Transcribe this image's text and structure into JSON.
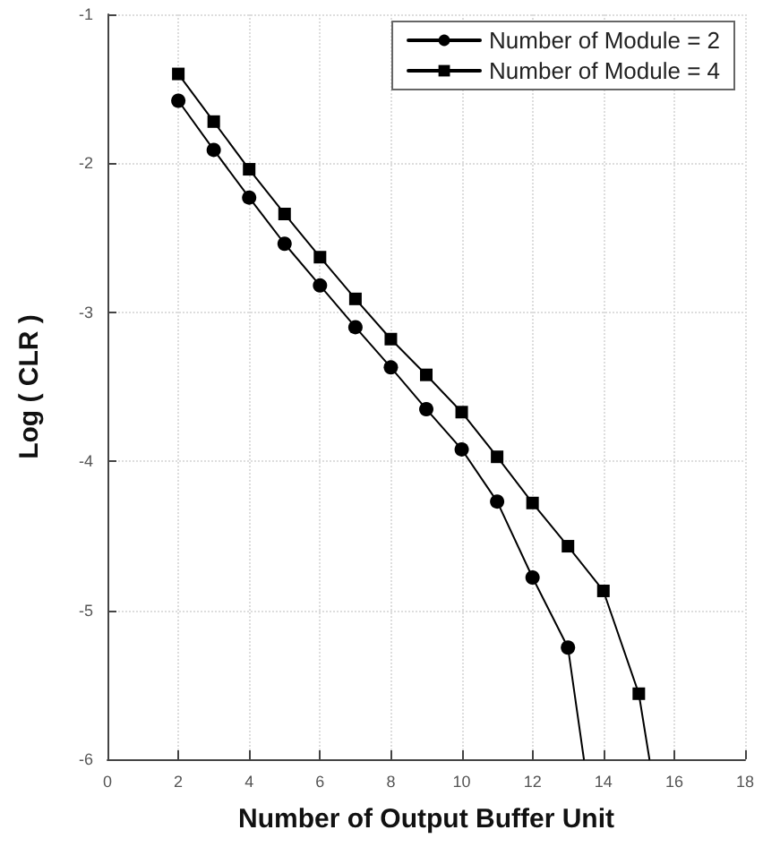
{
  "chart_data": {
    "type": "line",
    "xlabel": "Number of Output Buffer Unit",
    "ylabel": "Log ( CLR )",
    "xlim": [
      0,
      18
    ],
    "xticks": [
      0,
      2,
      4,
      6,
      8,
      10,
      12,
      14,
      16,
      18
    ],
    "ylim": [
      -6,
      -1
    ],
    "yticks": [
      -6,
      -5,
      -4,
      -3,
      -2,
      -1
    ],
    "grid": true,
    "legend": "top right",
    "line_style": "solid",
    "series": [
      {
        "name": "Number of Module = 2",
        "color": "#000000",
        "marker": "circle",
        "x": [
          2,
          3,
          4,
          5,
          6,
          7,
          8,
          9,
          10,
          11,
          12,
          13,
          13.45
        ],
        "values": [
          -1.58,
          -1.91,
          -2.23,
          -2.54,
          -2.82,
          -3.1,
          -3.37,
          -3.65,
          -3.92,
          -4.27,
          -4.78,
          -5.25,
          -6
        ]
      },
      {
        "name": "Number of Module = 4",
        "color": "#000000",
        "marker": "square",
        "x": [
          2,
          3,
          4,
          5,
          6,
          7,
          8,
          9,
          10,
          11,
          12,
          13,
          14,
          15,
          15.3
        ],
        "values": [
          -1.4,
          -1.72,
          -2.04,
          -2.34,
          -2.63,
          -2.91,
          -3.18,
          -3.42,
          -3.67,
          -3.97,
          -4.28,
          -4.57,
          -4.87,
          -5.56,
          -6
        ]
      }
    ]
  }
}
